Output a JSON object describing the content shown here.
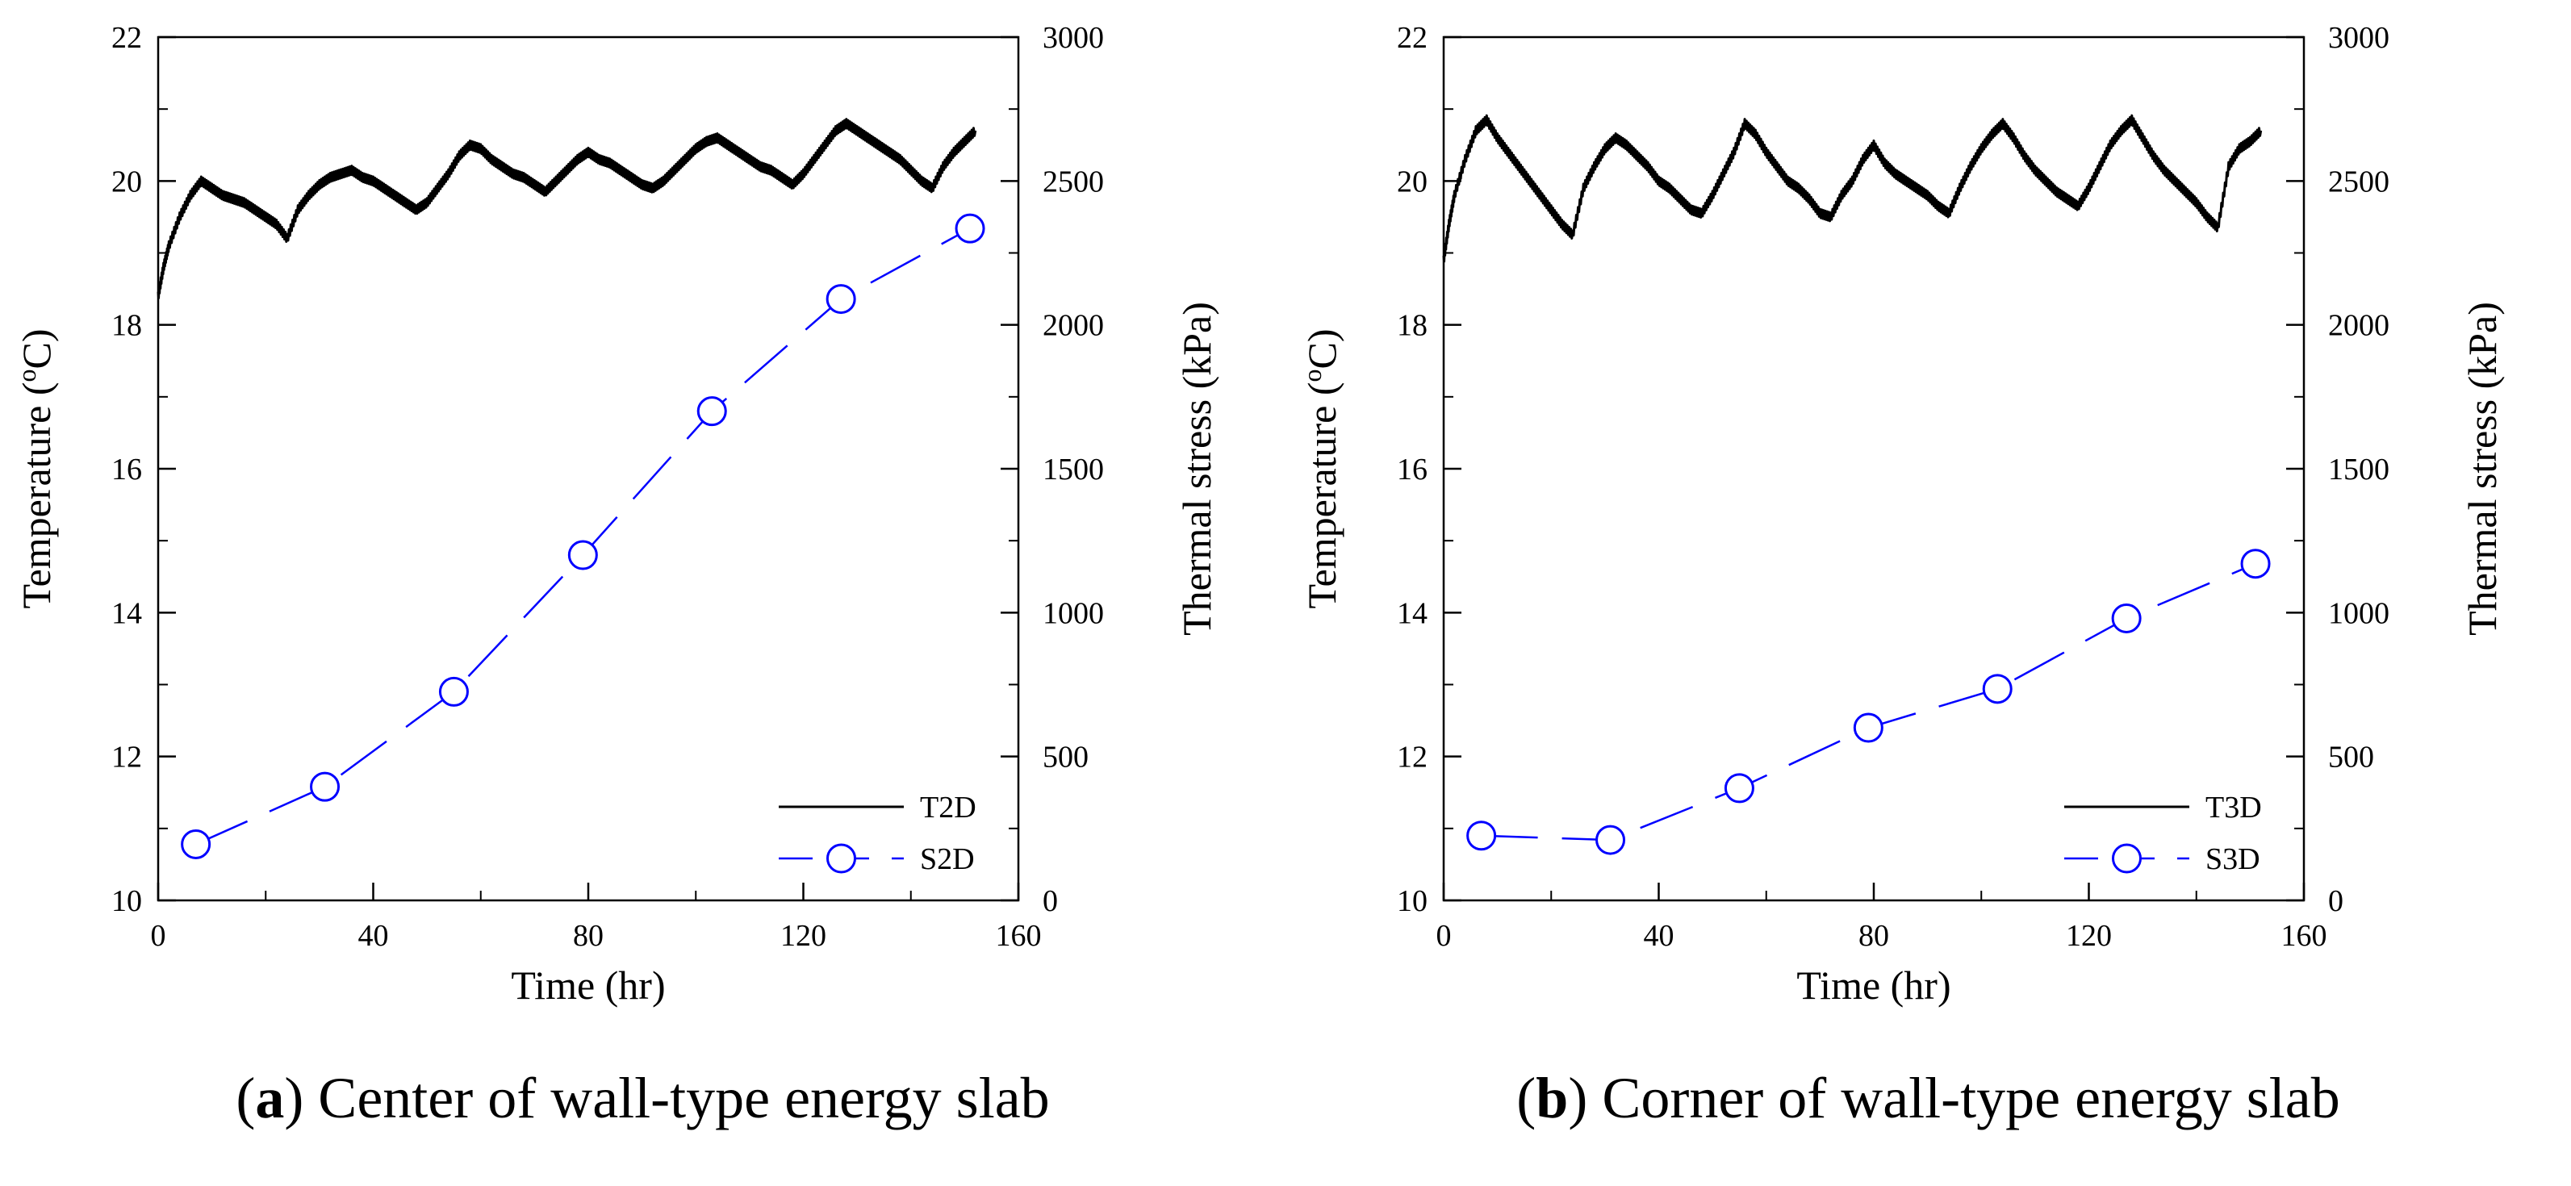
{
  "chart_data": [
    {
      "type": "line",
      "panel_letter": "a",
      "caption_open": "(",
      "caption_close": ") ",
      "caption": "Center of wall-type energy slab",
      "xlabel": "Time (hr)",
      "ylabel": "Temperature (",
      "ylabel_unit_super": "o",
      "ylabel_unit_rest": "C)",
      "y2label": "Thermal stress (kPa)",
      "xlim": [
        0,
        160
      ],
      "ylim": [
        10,
        22
      ],
      "y2lim": [
        0,
        3000
      ],
      "xticks": [
        0,
        40,
        80,
        120,
        160
      ],
      "yticks": [
        10,
        12,
        14,
        16,
        18,
        20,
        22
      ],
      "y2ticks": [
        0,
        500,
        1000,
        1500,
        2000,
        2500,
        3000
      ],
      "legend_position": "bottom-right",
      "series": [
        {
          "name": "T2D",
          "axis": "left",
          "color": "#000000",
          "marker": "none",
          "x": [
            0,
            1,
            2,
            4,
            6,
            8,
            10,
            12,
            14,
            16,
            18,
            20,
            22,
            24,
            26,
            28,
            30,
            32,
            34,
            36,
            38,
            40,
            42,
            44,
            46,
            48,
            50,
            52,
            54,
            56,
            58,
            60,
            62,
            64,
            66,
            68,
            70,
            72,
            74,
            76,
            78,
            80,
            82,
            84,
            86,
            88,
            90,
            92,
            94,
            96,
            98,
            100,
            102,
            104,
            106,
            108,
            110,
            112,
            114,
            116,
            118,
            120,
            122,
            124,
            126,
            128,
            130,
            132,
            134,
            136,
            138,
            140,
            142,
            144,
            146,
            148,
            150,
            152
          ],
          "values": [
            18.4,
            18.8,
            19.1,
            19.5,
            19.8,
            20.0,
            19.9,
            19.8,
            19.75,
            19.7,
            19.6,
            19.5,
            19.4,
            19.2,
            19.6,
            19.8,
            19.95,
            20.05,
            20.1,
            20.15,
            20.05,
            20.0,
            19.9,
            19.8,
            19.7,
            19.6,
            19.7,
            19.9,
            20.1,
            20.35,
            20.5,
            20.45,
            20.3,
            20.2,
            20.1,
            20.05,
            19.95,
            19.85,
            20.0,
            20.15,
            20.3,
            20.4,
            20.3,
            20.25,
            20.15,
            20.05,
            19.95,
            19.9,
            20.0,
            20.15,
            20.3,
            20.45,
            20.55,
            20.6,
            20.5,
            20.4,
            20.3,
            20.2,
            20.15,
            20.05,
            19.95,
            20.1,
            20.3,
            20.5,
            20.7,
            20.8,
            20.7,
            20.6,
            20.5,
            20.4,
            20.3,
            20.15,
            20.0,
            19.9,
            20.2,
            20.4,
            20.55,
            20.7
          ]
        },
        {
          "name": "S2D",
          "axis": "right",
          "color": "#0000ff",
          "marker": "circle",
          "x": [
            7,
            31,
            55,
            79,
            103,
            127,
            151
          ],
          "values": [
            195,
            395,
            725,
            1200,
            1700,
            2090,
            2335
          ]
        }
      ]
    },
    {
      "type": "line",
      "panel_letter": "b",
      "caption_open": "(",
      "caption_close": ") ",
      "caption": "Corner of wall-type energy slab",
      "xlabel": "Time (hr)",
      "ylabel": "Temperature (",
      "ylabel_unit_super": "o",
      "ylabel_unit_rest": "C)",
      "y2label": "Thermal stress (kPa)",
      "xlim": [
        0,
        160
      ],
      "ylim": [
        10,
        22
      ],
      "y2lim": [
        0,
        3000
      ],
      "xticks": [
        0,
        40,
        80,
        120,
        160
      ],
      "yticks": [
        10,
        12,
        14,
        16,
        18,
        20,
        22
      ],
      "y2ticks": [
        0,
        500,
        1000,
        1500,
        2000,
        2500,
        3000
      ],
      "legend_position": "bottom-right",
      "series": [
        {
          "name": "T3D",
          "axis": "left",
          "color": "#000000",
          "marker": "none",
          "x": [
            0,
            1,
            2,
            4,
            6,
            8,
            10,
            12,
            14,
            16,
            18,
            20,
            22,
            24,
            26,
            28,
            30,
            32,
            34,
            36,
            38,
            40,
            42,
            44,
            46,
            48,
            50,
            52,
            54,
            56,
            58,
            60,
            62,
            64,
            66,
            68,
            70,
            72,
            74,
            76,
            78,
            80,
            82,
            84,
            86,
            88,
            90,
            92,
            94,
            96,
            98,
            100,
            102,
            104,
            106,
            108,
            110,
            112,
            114,
            116,
            118,
            120,
            122,
            124,
            126,
            128,
            130,
            132,
            134,
            136,
            138,
            140,
            142,
            144,
            146,
            148,
            150,
            152
          ],
          "values": [
            18.9,
            19.4,
            19.8,
            20.3,
            20.7,
            20.85,
            20.6,
            20.4,
            20.2,
            20.0,
            19.8,
            19.6,
            19.4,
            19.25,
            19.9,
            20.2,
            20.45,
            20.6,
            20.5,
            20.35,
            20.2,
            20.0,
            19.9,
            19.75,
            19.6,
            19.55,
            19.8,
            20.1,
            20.4,
            20.8,
            20.65,
            20.4,
            20.2,
            20.0,
            19.9,
            19.75,
            19.55,
            19.5,
            19.8,
            20.0,
            20.3,
            20.5,
            20.25,
            20.1,
            20.0,
            19.9,
            19.8,
            19.65,
            19.55,
            19.9,
            20.2,
            20.45,
            20.65,
            20.8,
            20.6,
            20.35,
            20.15,
            20.0,
            19.85,
            19.75,
            19.65,
            19.9,
            20.2,
            20.5,
            20.7,
            20.85,
            20.6,
            20.35,
            20.15,
            20.0,
            19.85,
            19.7,
            19.5,
            19.35,
            20.2,
            20.45,
            20.55,
            20.7
          ]
        },
        {
          "name": "S3D",
          "axis": "right",
          "color": "#0000ff",
          "marker": "circle",
          "x": [
            7,
            31,
            55,
            79,
            103,
            127,
            151
          ],
          "values": [
            225,
            210,
            390,
            600,
            735,
            980,
            1170
          ]
        }
      ]
    }
  ]
}
